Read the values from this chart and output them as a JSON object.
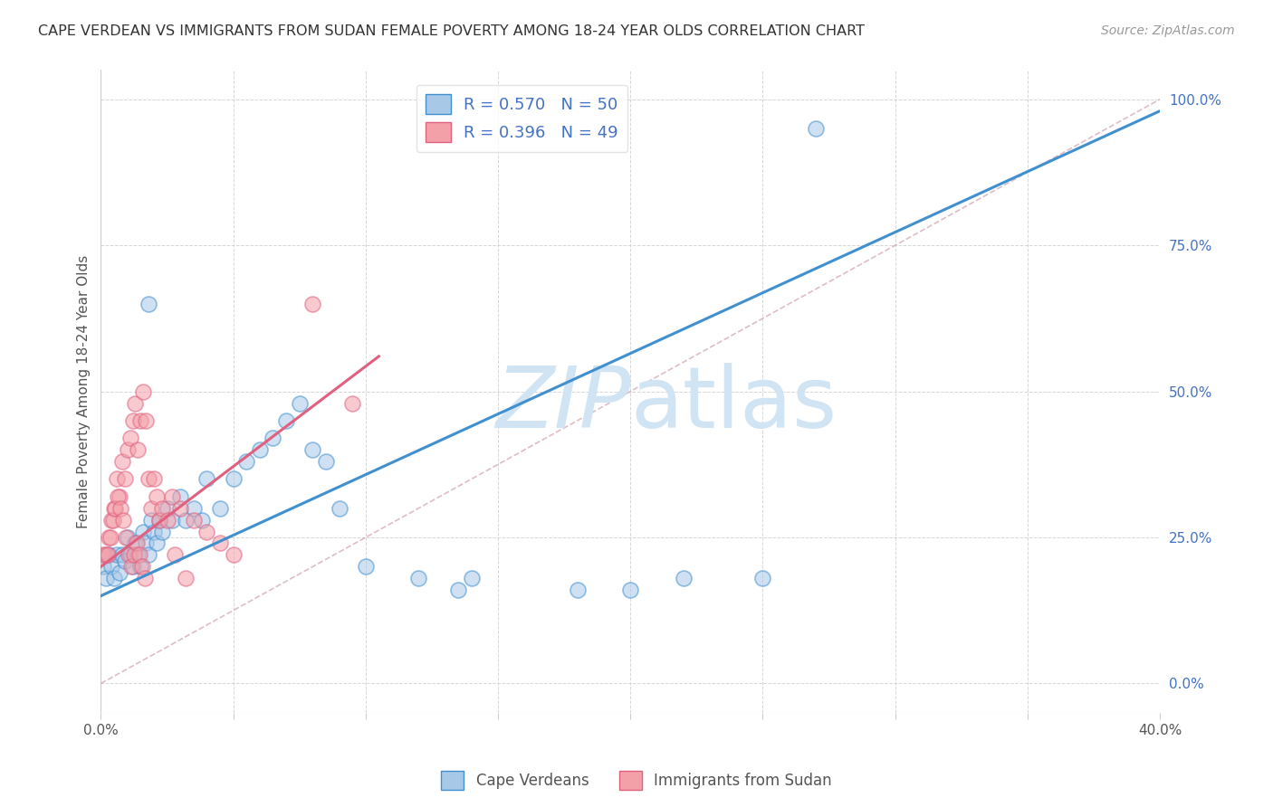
{
  "title": "CAPE VERDEAN VS IMMIGRANTS FROM SUDAN FEMALE POVERTY AMONG 18-24 YEAR OLDS CORRELATION CHART",
  "source": "Source: ZipAtlas.com",
  "ylabel_left": "Female Poverty Among 18-24 Year Olds",
  "x_tick_labels": [
    "0.0%",
    "",
    "",
    "",
    "",
    "",
    "",
    "",
    "40.0%"
  ],
  "x_tick_values": [
    0.0,
    5.0,
    10.0,
    15.0,
    20.0,
    25.0,
    30.0,
    35.0,
    40.0
  ],
  "x_minor_ticks": [
    5.0,
    10.0,
    15.0,
    20.0,
    25.0,
    30.0,
    35.0
  ],
  "y_tick_labels": [
    "100.0%",
    "75.0%",
    "50.0%",
    "25.0%",
    "0.0%"
  ],
  "y_tick_values": [
    100.0,
    75.0,
    50.0,
    25.0,
    0.0
  ],
  "xlim": [
    0.0,
    40.0
  ],
  "ylim": [
    -5.0,
    105.0
  ],
  "blue_R": 0.57,
  "blue_N": 50,
  "pink_R": 0.396,
  "pink_N": 49,
  "blue_color": "#a8c8e8",
  "pink_color": "#f4a0a8",
  "blue_line_color": "#4090d0",
  "pink_line_color": "#e06080",
  "watermark_color": "#d0e4f4",
  "background_color": "#ffffff",
  "grid_color": "#cccccc",
  "title_color": "#333333",
  "source_color": "#999999",
  "legend_label_blue": "Cape Verdeans",
  "legend_label_pink": "Immigrants from Sudan",
  "blue_scatter_x": [
    0.1,
    0.2,
    0.3,
    0.4,
    0.5,
    0.6,
    0.7,
    0.8,
    0.9,
    1.0,
    1.1,
    1.2,
    1.3,
    1.4,
    1.5,
    1.6,
    1.7,
    1.8,
    1.9,
    2.0,
    2.1,
    2.2,
    2.3,
    2.5,
    2.7,
    3.0,
    3.2,
    3.5,
    3.8,
    4.0,
    4.5,
    5.0,
    5.5,
    6.0,
    6.5,
    7.0,
    7.5,
    8.0,
    8.5,
    9.0,
    10.0,
    12.0,
    13.5,
    14.0,
    18.0,
    20.0,
    22.0,
    25.0,
    1.8,
    27.0
  ],
  "blue_scatter_y": [
    20.0,
    18.0,
    22.0,
    20.0,
    18.0,
    22.0,
    19.0,
    22.0,
    21.0,
    25.0,
    22.0,
    20.0,
    24.0,
    22.0,
    20.0,
    26.0,
    24.0,
    22.0,
    28.0,
    26.0,
    24.0,
    28.0,
    26.0,
    30.0,
    28.0,
    32.0,
    28.0,
    30.0,
    28.0,
    35.0,
    30.0,
    35.0,
    38.0,
    40.0,
    42.0,
    45.0,
    48.0,
    40.0,
    38.0,
    30.0,
    20.0,
    18.0,
    16.0,
    18.0,
    16.0,
    16.0,
    18.0,
    18.0,
    65.0,
    95.0
  ],
  "pink_scatter_x": [
    0.1,
    0.2,
    0.3,
    0.4,
    0.5,
    0.6,
    0.7,
    0.8,
    0.9,
    1.0,
    1.1,
    1.2,
    1.3,
    1.4,
    1.5,
    1.6,
    1.7,
    1.8,
    1.9,
    2.0,
    2.1,
    2.2,
    2.3,
    2.5,
    2.7,
    3.0,
    3.5,
    4.0,
    4.5,
    5.0,
    0.25,
    0.35,
    0.45,
    0.55,
    0.65,
    0.75,
    0.85,
    0.95,
    1.05,
    1.15,
    1.25,
    1.35,
    1.45,
    1.55,
    1.65,
    2.8,
    3.2,
    8.0,
    9.5
  ],
  "pink_scatter_y": [
    22.0,
    22.0,
    25.0,
    28.0,
    30.0,
    35.0,
    32.0,
    38.0,
    35.0,
    40.0,
    42.0,
    45.0,
    48.0,
    40.0,
    45.0,
    50.0,
    45.0,
    35.0,
    30.0,
    35.0,
    32.0,
    28.0,
    30.0,
    28.0,
    32.0,
    30.0,
    28.0,
    26.0,
    24.0,
    22.0,
    22.0,
    25.0,
    28.0,
    30.0,
    32.0,
    30.0,
    28.0,
    25.0,
    22.0,
    20.0,
    22.0,
    24.0,
    22.0,
    20.0,
    18.0,
    22.0,
    18.0,
    65.0,
    48.0
  ],
  "blue_line_x": [
    0.0,
    40.0
  ],
  "blue_line_y": [
    15.0,
    98.0
  ],
  "pink_line_x": [
    0.0,
    10.5
  ],
  "pink_line_y": [
    20.0,
    56.0
  ],
  "diag_line_x": [
    0.0,
    40.0
  ],
  "diag_line_y": [
    0.0,
    100.0
  ]
}
